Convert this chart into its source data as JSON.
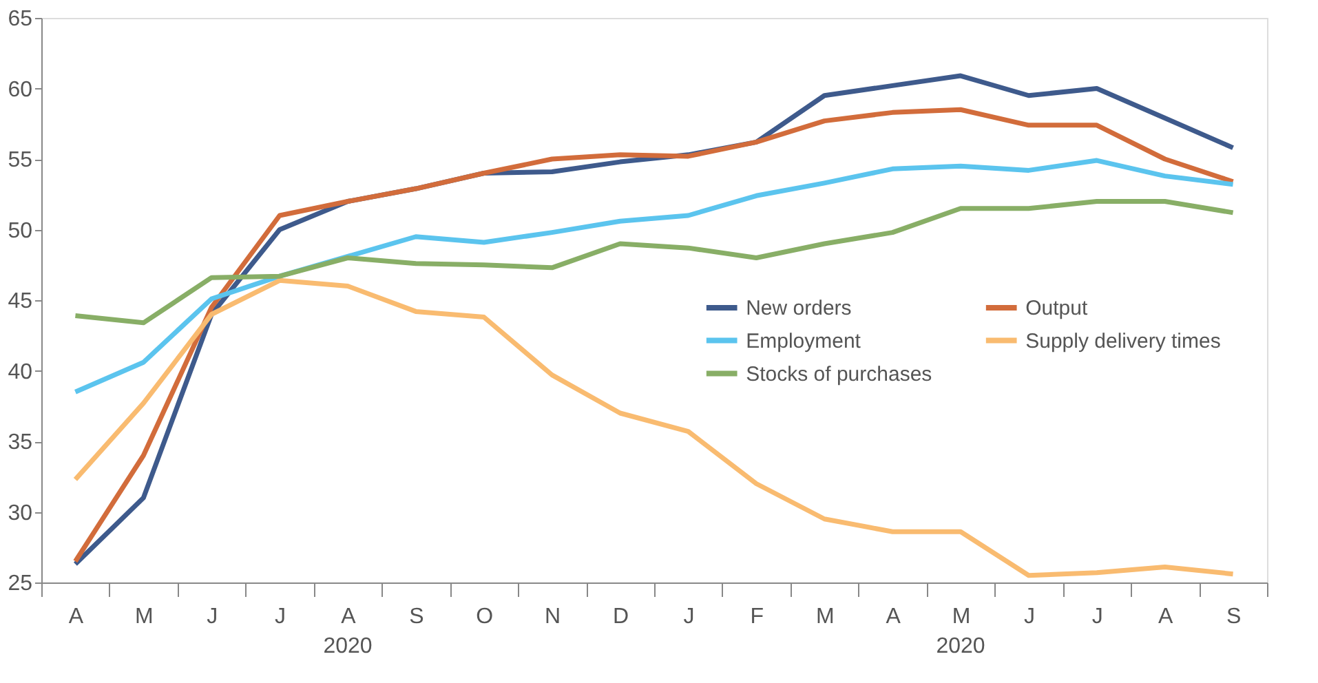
{
  "chart_data": {
    "type": "line",
    "categories": [
      "A",
      "M",
      "J",
      "J",
      "A",
      "S",
      "O",
      "N",
      "D",
      "J",
      "F",
      "M",
      "A",
      "M",
      "J",
      "J",
      "A",
      "S"
    ],
    "series": [
      {
        "name": "New orders",
        "color": "#3e5a8c",
        "values": [
          26.3,
          31,
          44,
          50,
          52,
          52.9,
          54,
          54.1,
          54.8,
          55.3,
          56.2,
          59.5,
          60.2,
          60.9,
          59.5,
          60,
          57.9,
          55.8
        ]
      },
      {
        "name": "Output",
        "color": "#d26c3b",
        "values": [
          26.5,
          34,
          44.5,
          51,
          52,
          52.9,
          54,
          55,
          55.3,
          55.2,
          56.2,
          57.7,
          58.3,
          58.5,
          57.4,
          57.4,
          55,
          53.4
        ]
      },
      {
        "name": "Employment",
        "color": "#5bc4ee",
        "values": [
          38.5,
          40.6,
          45.1,
          46.7,
          48.1,
          49.5,
          49.1,
          49.8,
          50.6,
          51,
          52.4,
          53.3,
          54.3,
          54.5,
          54.2,
          54.9,
          53.8,
          53.2
        ]
      },
      {
        "name": "Supply delivery times",
        "color": "#f9bb70",
        "values": [
          32.3,
          37.7,
          44,
          46.4,
          46,
          44.2,
          43.8,
          39.7,
          37,
          35.7,
          32,
          29.5,
          28.6,
          28.6,
          25.5,
          25.7,
          26.1,
          25.6
        ]
      },
      {
        "name": "Stocks of purchases",
        "color": "#88ae66",
        "values": [
          43.9,
          43.4,
          46.6,
          46.7,
          48,
          47.6,
          47.5,
          47.3,
          49,
          48.7,
          48,
          49,
          49.8,
          51.5,
          51.5,
          52,
          52,
          51.2
        ]
      }
    ],
    "ylim": [
      25,
      65
    ],
    "yticks": [
      25,
      30,
      35,
      40,
      45,
      50,
      55,
      60,
      65
    ],
    "annotations": [
      "2020",
      "2020"
    ],
    "grid": false,
    "legend": "right",
    "marker": "none",
    "line_style": "solid"
  }
}
